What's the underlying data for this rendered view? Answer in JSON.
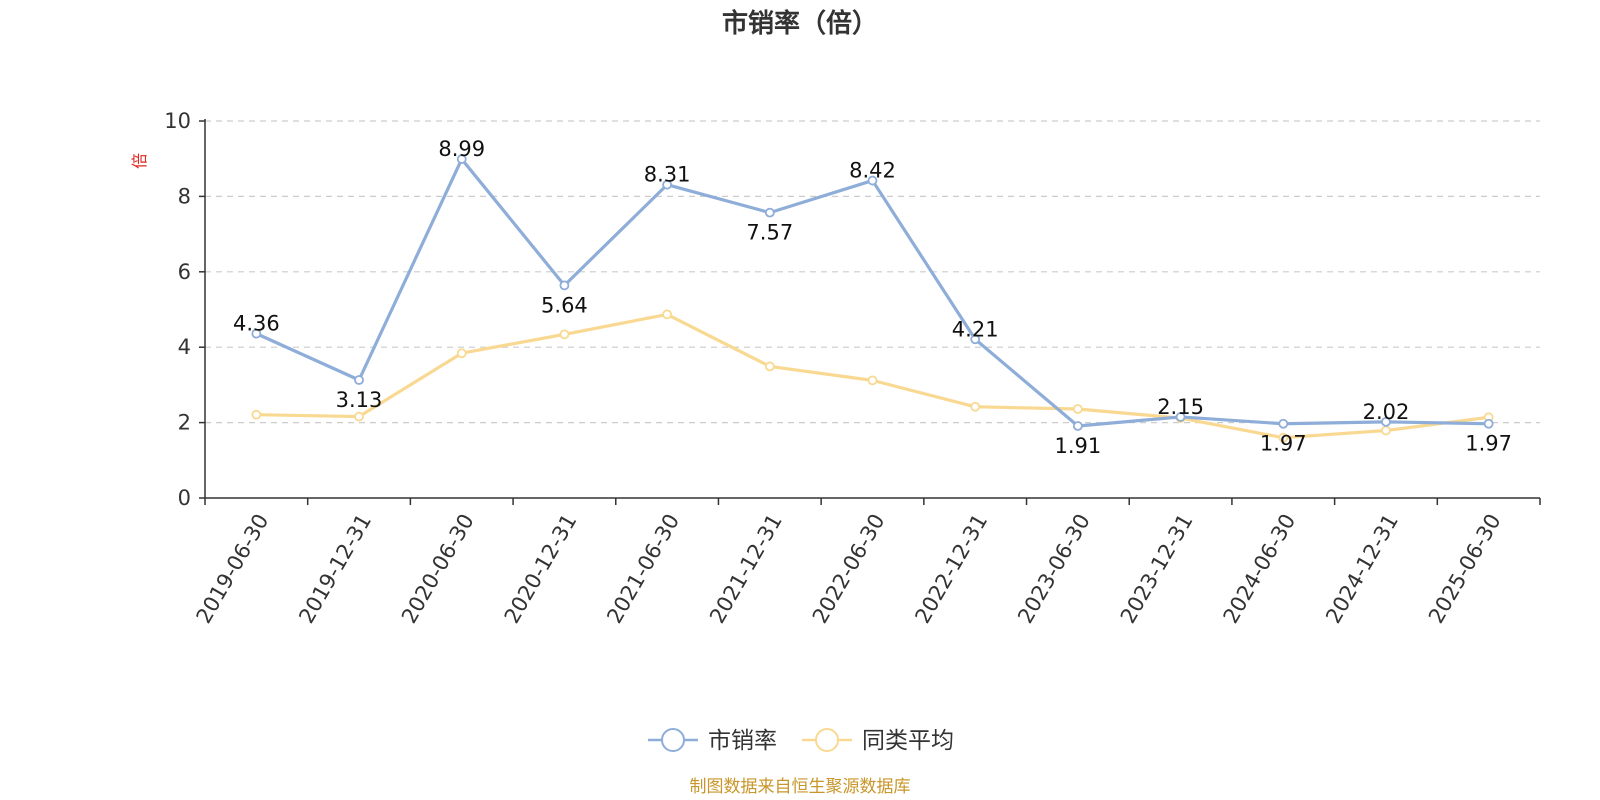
{
  "chart_data": {
    "type": "line",
    "title": "市销率（倍）",
    "ylabel": "倍",
    "ylim": [
      0,
      10
    ],
    "yticks": [
      0,
      2,
      4,
      6,
      8,
      10
    ],
    "grid": "horizontal-dashed",
    "legend_position": "bottom-center",
    "categories": [
      "2019-06-30",
      "2019-12-31",
      "2020-06-30",
      "2020-12-31",
      "2021-06-30",
      "2021-12-31",
      "2022-06-30",
      "2022-12-31",
      "2023-06-30",
      "2023-12-31",
      "2024-06-30",
      "2024-12-31",
      "2025-06-30"
    ],
    "series": [
      {
        "name": "市销率",
        "color": "#8eadd8",
        "values": [
          4.36,
          3.13,
          8.99,
          5.64,
          8.31,
          7.57,
          8.42,
          4.21,
          1.91,
          2.15,
          1.97,
          2.02,
          1.97
        ],
        "labels": [
          "4.36",
          "3.13",
          "8.99",
          "5.64",
          "8.31",
          "7.57",
          "8.42",
          "4.21",
          "1.91",
          "2.15",
          "1.97",
          "2.02",
          "1.97"
        ],
        "show_labels": true
      },
      {
        "name": "同类平均",
        "color": "#f9d992",
        "values": [
          2.21,
          2.16,
          3.84,
          4.34,
          4.87,
          3.49,
          3.12,
          2.42,
          2.36,
          2.12,
          1.6,
          1.79,
          2.14
        ],
        "show_labels": false
      }
    ],
    "source": "制图数据来自恒生聚源数据库",
    "source_color": "#c8962a",
    "ylabel_color": "#e0261e"
  }
}
